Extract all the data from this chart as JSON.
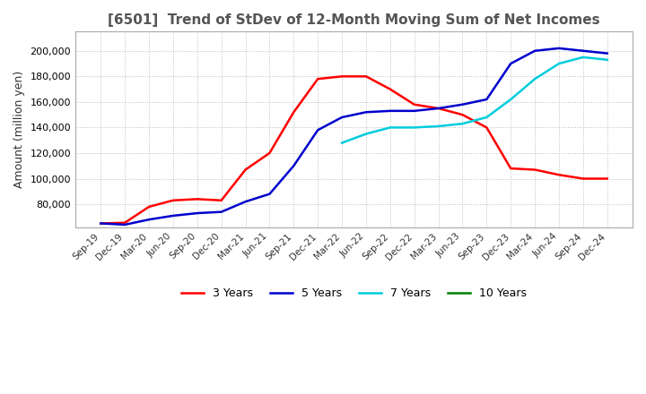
{
  "title": "[6501]  Trend of StDev of 12-Month Moving Sum of Net Incomes",
  "ylabel": "Amount (million yen)",
  "ylim": [
    62000,
    215000
  ],
  "yticks": [
    80000,
    100000,
    120000,
    140000,
    160000,
    180000,
    200000
  ],
  "background_color": "#ffffff",
  "grid_color": "#bbbbbb",
  "legend_labels": [
    "3 Years",
    "5 Years",
    "7 Years",
    "10 Years"
  ],
  "legend_colors": [
    "#ff0000",
    "#0000cd",
    "#00ccdd",
    "#008000"
  ],
  "x_labels": [
    "Sep-19",
    "Dec-19",
    "Mar-20",
    "Jun-20",
    "Sep-20",
    "Dec-20",
    "Mar-21",
    "Jun-21",
    "Sep-21",
    "Dec-21",
    "Mar-22",
    "Jun-22",
    "Sep-22",
    "Dec-22",
    "Mar-23",
    "Jun-23",
    "Sep-23",
    "Dec-23",
    "Mar-24",
    "Jun-24",
    "Sep-24",
    "Dec-24"
  ],
  "series_3y": [
    65000,
    65500,
    78000,
    83000,
    84000,
    83000,
    107000,
    120000,
    152000,
    178000,
    180000,
    180000,
    170000,
    158000,
    155000,
    150000,
    140000,
    108000,
    107000,
    103000,
    100000,
    100000
  ],
  "series_5y": [
    65000,
    64000,
    68000,
    71000,
    73000,
    74000,
    82000,
    88000,
    110000,
    138000,
    148000,
    152000,
    153000,
    153000,
    155000,
    158000,
    162000,
    190000,
    200000,
    202000,
    200000,
    198000
  ],
  "series_7y": [
    null,
    null,
    null,
    null,
    null,
    null,
    null,
    null,
    null,
    null,
    128000,
    135000,
    140000,
    140000,
    141000,
    143000,
    148000,
    162000,
    178000,
    190000,
    195000,
    193000
  ],
  "series_10y": [
    null,
    null,
    null,
    null,
    null,
    null,
    null,
    null,
    null,
    null,
    null,
    null,
    null,
    null,
    null,
    null,
    null,
    null,
    null,
    null,
    null,
    null
  ]
}
